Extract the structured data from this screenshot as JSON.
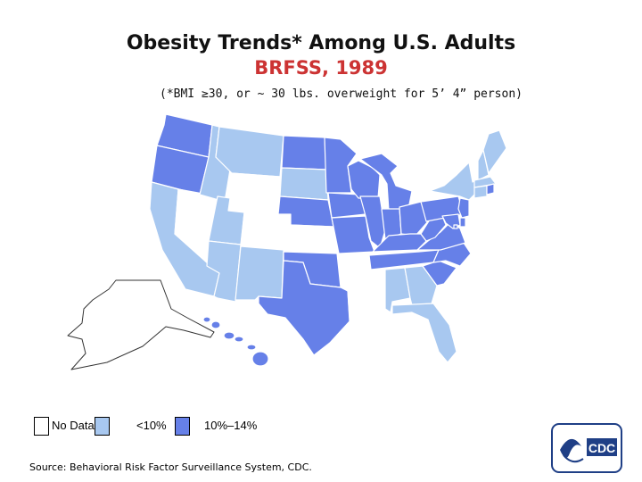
{
  "title": "Obesity Trends* Among U.S. Adults",
  "subtitle": "BRFSS, 1989",
  "note": "(*BMI ≥30, or ~ 30 lbs. overweight for 5’ 4” person)",
  "legend": [
    {
      "label": "No Data",
      "color": "#ffffff"
    },
    {
      "label": "<10%",
      "color": "#a8c8f0"
    },
    {
      "label": "10%–14%",
      "color": "#6680e8"
    }
  ],
  "source": "Source: Behavioral Risk Factor Surveillance System, CDC.",
  "logo_text": "CDC",
  "colors": {
    "nodata": "#ffffff",
    "low": "#a8c8f0",
    "mid": "#6680e8",
    "border": "#ffffff",
    "title_red": "#cc3333"
  },
  "states": {
    "WA": "mid",
    "OR": "mid",
    "CA": "low",
    "NV": "nodata",
    "ID": "low",
    "MT": "low",
    "WY": "nodata",
    "UT": "low",
    "AZ": "low",
    "CO": "nodata",
    "NM": "low",
    "ND": "mid",
    "SD": "low",
    "NE": "mid",
    "KS": "nodata",
    "OK": "mid",
    "TX": "mid",
    "MN": "mid",
    "IA": "mid",
    "MO": "mid",
    "AR": "nodata",
    "LA": "nodata",
    "WI": "mid",
    "IL": "mid",
    "MI": "mid",
    "IN": "mid",
    "OH": "mid",
    "KY": "mid",
    "TN": "mid",
    "MS": "nodata",
    "AL": "low",
    "GA": "low",
    "FL": "low",
    "SC": "mid",
    "NC": "mid",
    "VA": "mid",
    "WV": "mid",
    "PA": "mid",
    "NY": "low",
    "VT": "nodata",
    "NH": "low",
    "ME": "low",
    "MA": "low",
    "CT": "low",
    "RI": "mid",
    "NJ": "mid",
    "DE": "mid",
    "MD": "mid",
    "DC": "mid",
    "AK": "nodata",
    "HI": "mid"
  }
}
